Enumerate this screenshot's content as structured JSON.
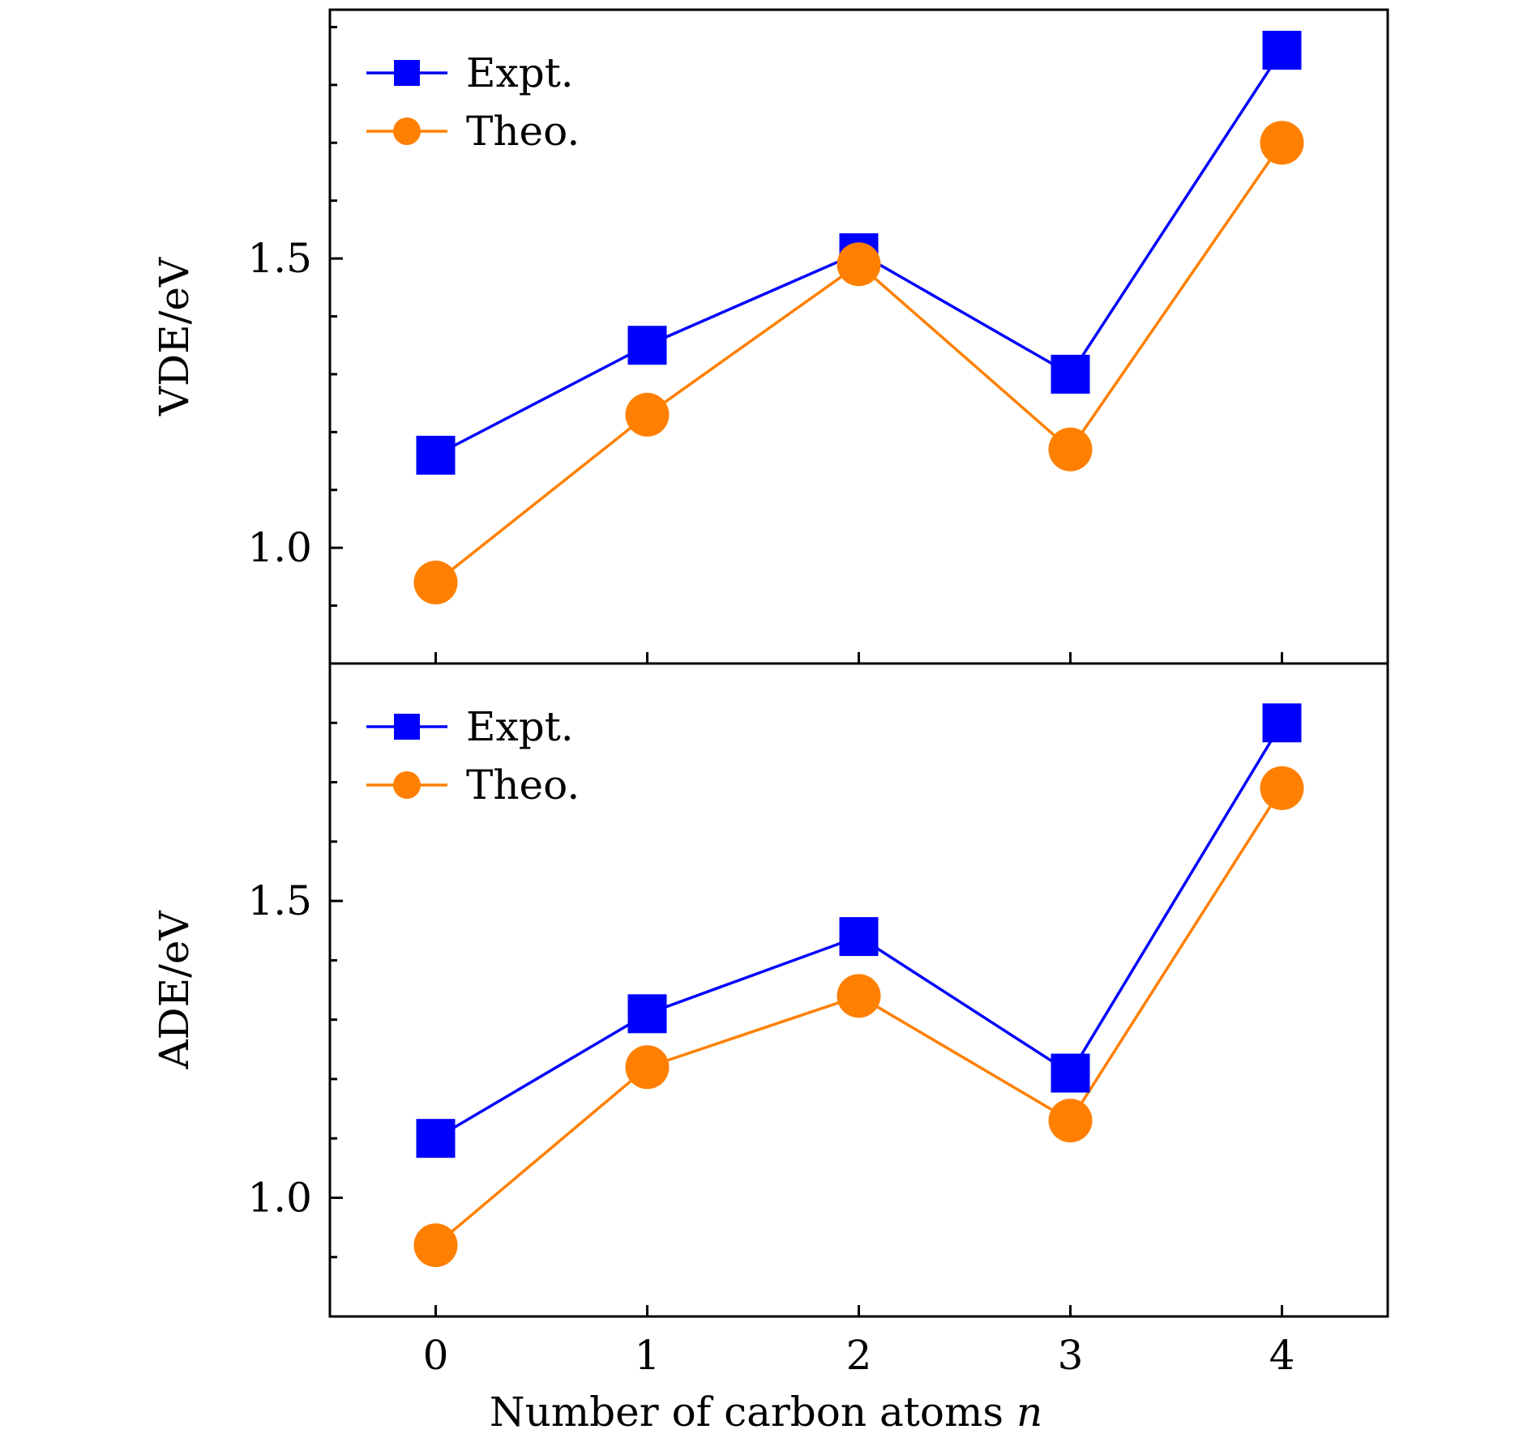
{
  "chart_data": [
    {
      "type": "line",
      "panel": "top",
      "x": [
        0,
        1,
        2,
        3,
        4
      ],
      "xlabel": "Number of carbon atoms n",
      "xtick_labels": [
        "0",
        "1",
        "2",
        "3",
        "4"
      ],
      "ylabel": "VDE/eV",
      "yticks": [
        1.0,
        1.5
      ],
      "ytick_labels": [
        "1.0",
        "1.5"
      ],
      "ylim": [
        0.8,
        1.93
      ],
      "xlim": [
        -0.5,
        4.5
      ],
      "grid": false,
      "legend_position": "top-left",
      "series": [
        {
          "name": "Expt.",
          "marker": "square",
          "color": "#0000ff",
          "values": [
            1.16,
            1.35,
            1.51,
            1.3,
            1.86
          ]
        },
        {
          "name": "Theo.",
          "marker": "circle",
          "color": "#ff8000",
          "values": [
            0.94,
            1.23,
            1.49,
            1.17,
            1.7
          ]
        }
      ]
    },
    {
      "type": "line",
      "panel": "bottom",
      "x": [
        0,
        1,
        2,
        3,
        4
      ],
      "xlabel": "Number of carbon atoms n",
      "xtick_labels": [
        "0",
        "1",
        "2",
        "3",
        "4"
      ],
      "ylabel": "ADE/eV",
      "yticks": [
        1.0,
        1.5
      ],
      "ytick_labels": [
        "1.0",
        "1.5"
      ],
      "ylim": [
        0.8,
        1.9
      ],
      "xlim": [
        -0.5,
        4.5
      ],
      "grid": false,
      "legend_position": "top-left",
      "series": [
        {
          "name": "Expt.",
          "marker": "square",
          "color": "#0000ff",
          "values": [
            1.1,
            1.31,
            1.44,
            1.21,
            1.8
          ]
        },
        {
          "name": "Theo.",
          "marker": "circle",
          "color": "#ff8000",
          "values": [
            0.92,
            1.22,
            1.34,
            1.13,
            1.69
          ]
        }
      ]
    }
  ],
  "xaxis": {
    "label_text": "Number of carbon atoms ",
    "label_var": "n"
  }
}
